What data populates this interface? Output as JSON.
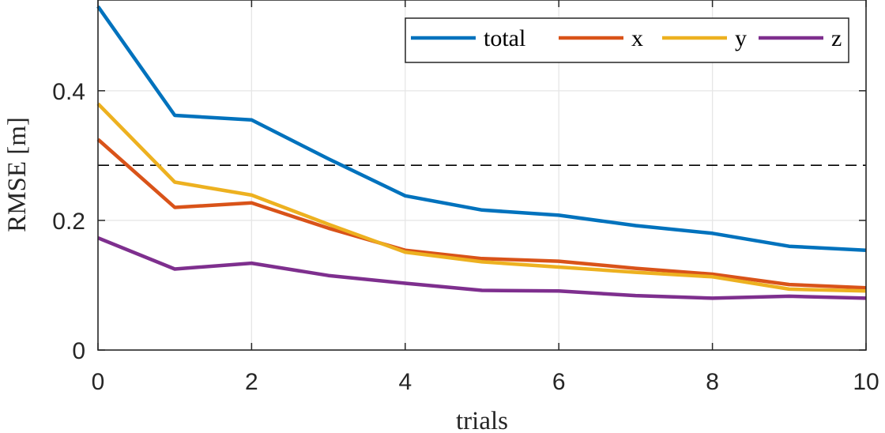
{
  "chart_data": {
    "type": "line",
    "xlabel": "trials",
    "ylabel": "RMSE [m]",
    "xlim": [
      0,
      10
    ],
    "ylim": [
      0,
      0.54
    ],
    "xticks": [
      0,
      2,
      4,
      6,
      8,
      10
    ],
    "yticks": [
      0,
      0.2,
      0.4
    ],
    "xtick_labels": [
      "0",
      "2",
      "4",
      "6",
      "8",
      "10"
    ],
    "ytick_labels": [
      "0",
      "0.2",
      "0.4"
    ],
    "grid": true,
    "legend_position": "top-right",
    "reference_line": {
      "y": 0.285,
      "style": "dashed"
    },
    "x": [
      0,
      1,
      2,
      3,
      4,
      5,
      6,
      7,
      8,
      9,
      10
    ],
    "series": [
      {
        "name": "total",
        "color": "#0072BD",
        "values": [
          0.53,
          0.362,
          0.355,
          0.295,
          0.238,
          0.216,
          0.208,
          0.192,
          0.18,
          0.16,
          0.154
        ]
      },
      {
        "name": "x",
        "color": "#D95319",
        "values": [
          0.325,
          0.22,
          0.227,
          0.188,
          0.154,
          0.141,
          0.137,
          0.126,
          0.117,
          0.101,
          0.096
        ]
      },
      {
        "name": "y",
        "color": "#EDB120",
        "values": [
          0.38,
          0.259,
          0.239,
          0.194,
          0.151,
          0.136,
          0.128,
          0.12,
          0.113,
          0.094,
          0.091
        ]
      },
      {
        "name": "z",
        "color": "#7E2F8E",
        "values": [
          0.173,
          0.125,
          0.134,
          0.115,
          0.103,
          0.092,
          0.091,
          0.084,
          0.08,
          0.083,
          0.08
        ]
      }
    ]
  }
}
